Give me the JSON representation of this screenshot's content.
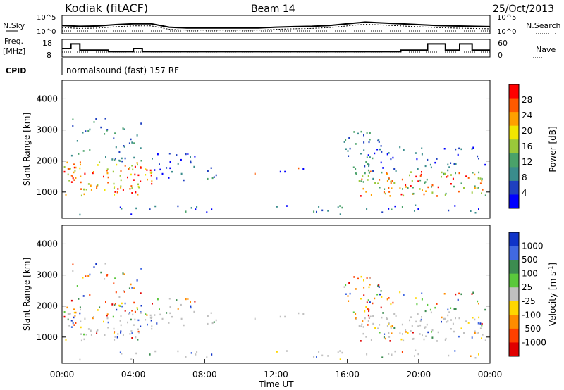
{
  "header": {
    "station": "Kodiak (fitACF)",
    "beam": "Beam 14",
    "date": "25/Oct/2013"
  },
  "colors": {
    "power_scale": [
      "#0000ff",
      "#1f40c0",
      "#3a8c8c",
      "#4aa26a",
      "#9ac83a",
      "#f2e600",
      "#ffa000",
      "#ff5a00",
      "#ff0000"
    ],
    "velocity_scale": [
      "#1034c8",
      "#4169e1",
      "#3c8c50",
      "#5ac83c",
      "#c0c0c0",
      "#ffd700",
      "#ff8c00",
      "#ff4000",
      "#e00000"
    ],
    "ground_scatter": "#c0c0c0"
  },
  "chart_data": [
    {
      "id": "noise",
      "type": "line",
      "ylabel_left": "N.Sky",
      "ylabel_right": "N.Search",
      "left_ticks": [
        "10^5",
        "10^0"
      ],
      "right_ticks": [
        "10^5",
        "10^0"
      ],
      "legend_right": "N.Search",
      "x_range": [
        0,
        24
      ],
      "series": [
        {
          "name": "N.Sky",
          "x": [
            0,
            1,
            2,
            3,
            4,
            5,
            6,
            7,
            8,
            9,
            10,
            11,
            12,
            13,
            14,
            15,
            16,
            17,
            18,
            19,
            20,
            21,
            22,
            23,
            24
          ],
          "y": [
            0.45,
            0.4,
            0.42,
            0.5,
            0.55,
            0.55,
            0.35,
            0.3,
            0.3,
            0.3,
            0.3,
            0.3,
            0.35,
            0.38,
            0.4,
            0.45,
            0.55,
            0.65,
            0.6,
            0.55,
            0.5,
            0.45,
            0.42,
            0.4,
            0.38
          ]
        }
      ]
    },
    {
      "id": "freq",
      "type": "line",
      "ylabel_left": "Freq.",
      "ylabel_left_unit": "[MHz]",
      "left_ticks": [
        "18",
        "8"
      ],
      "right_ticks": [
        "60",
        "0"
      ],
      "legend_right": "Nave",
      "x_range": [
        0,
        24
      ],
      "ylim": [
        8,
        18
      ],
      "series": [
        {
          "name": "Freq.",
          "x": [
            0,
            0.5,
            0.5,
            1.0,
            1.0,
            1.3,
            1.3,
            2.6,
            2.6,
            4.0,
            4.0,
            4.5,
            4.5,
            7.0,
            7.0,
            9.5,
            9.5,
            11.0,
            11.0,
            15.5,
            15.5,
            19.0,
            19.0,
            20.5,
            20.5,
            21.5,
            21.5,
            22.3,
            22.3,
            23.0,
            23.0,
            24
          ],
          "y": [
            13,
            13,
            16,
            16,
            12,
            12,
            12,
            12,
            11,
            11,
            13,
            13,
            11,
            11,
            11,
            11,
            11,
            11,
            11,
            11,
            11,
            11,
            12,
            12,
            16,
            16,
            12,
            12,
            16,
            16,
            12,
            12
          ]
        }
      ]
    },
    {
      "id": "power",
      "type": "heatmap",
      "ylabel": "Slant Range [km]",
      "yticks": [
        1000,
        2000,
        3000,
        4000
      ],
      "ylim": [
        180,
        4600
      ],
      "colorbar_label": "Power [dB]",
      "colorbar_ticks": [
        "28",
        "24",
        "20",
        "16",
        "12",
        "8",
        "4"
      ],
      "colorbar_range": [
        0,
        30
      ]
    },
    {
      "id": "velocity",
      "type": "heatmap",
      "ylabel": "Slant Range [km]",
      "yticks": [
        1000,
        2000,
        3000,
        4000
      ],
      "ylim": [
        180,
        4600
      ],
      "colorbar_label": "Velocity [m s",
      "colorbar_label_sup": "-1",
      "colorbar_label_end": "]",
      "colorbar_ticks": [
        "1000",
        "500",
        "100",
        "25",
        "-25",
        "-100",
        "-500",
        "-1000"
      ],
      "xticks": [
        "00:00",
        "04:00",
        "08:00",
        "12:00",
        "16:00",
        "20:00",
        "00:00"
      ],
      "xlabel": "Time UT"
    }
  ],
  "cpid": {
    "label": "CPID",
    "program": "normalsound (fast) 157 RF"
  }
}
